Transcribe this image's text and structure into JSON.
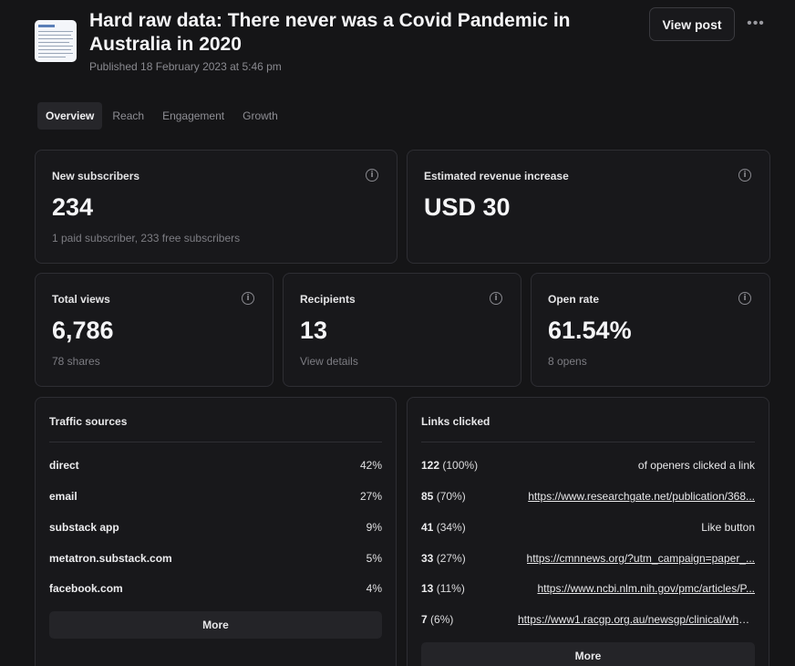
{
  "post": {
    "title": "Hard raw data: There never was a Covid Pandemic in Australia in 2020",
    "published": "Published 18 February 2023 at 5:46 pm",
    "view_post_label": "View post",
    "more_icon": "ellipsis-icon"
  },
  "tabs": [
    {
      "label": "Overview",
      "active": true
    },
    {
      "label": "Reach",
      "active": false
    },
    {
      "label": "Engagement",
      "active": false
    },
    {
      "label": "Growth",
      "active": false
    }
  ],
  "stats": {
    "new_subscribers": {
      "label": "New subscribers",
      "value": "234",
      "sub": "1 paid subscriber, 233 free subscribers"
    },
    "revenue": {
      "label": "Estimated revenue increase",
      "value": "USD 30"
    },
    "total_views": {
      "label": "Total views",
      "value": "6,786",
      "sub": "78 shares"
    },
    "recipients": {
      "label": "Recipients",
      "value": "13",
      "sub": "View details"
    },
    "open_rate": {
      "label": "Open rate",
      "value": "61.54%",
      "sub": "8 opens"
    }
  },
  "traffic": {
    "title": "Traffic sources",
    "rows": [
      {
        "name": "direct",
        "pct": "42%"
      },
      {
        "name": "email",
        "pct": "27%"
      },
      {
        "name": "substack app",
        "pct": "9%"
      },
      {
        "name": "metatron.substack.com",
        "pct": "5%"
      },
      {
        "name": "facebook.com",
        "pct": "4%"
      }
    ],
    "more_label": "More"
  },
  "links": {
    "title": "Links clicked",
    "rows": [
      {
        "count": "122",
        "pct": "(100%)",
        "target": "of openers clicked a link",
        "is_link": false
      },
      {
        "count": "85",
        "pct": "(70%)",
        "target": "https://www.researchgate.net/publication/368...",
        "is_link": true
      },
      {
        "count": "41",
        "pct": "(34%)",
        "target": "Like button",
        "is_link": false
      },
      {
        "count": "33",
        "pct": "(27%)",
        "target": "https://cmnnews.org/?utm_campaign=paper_...",
        "is_link": true
      },
      {
        "count": "13",
        "pct": "(11%)",
        "target": "https://www.ncbi.nlm.nih.gov/pmc/articles/P...",
        "is_link": true
      },
      {
        "count": "7",
        "pct": "(6%)",
        "target": "https://www1.racgp.org.au/newsgp/clinical/why-...",
        "is_link": true
      }
    ],
    "more_label": "More"
  },
  "icons": {
    "info": "info-icon"
  }
}
